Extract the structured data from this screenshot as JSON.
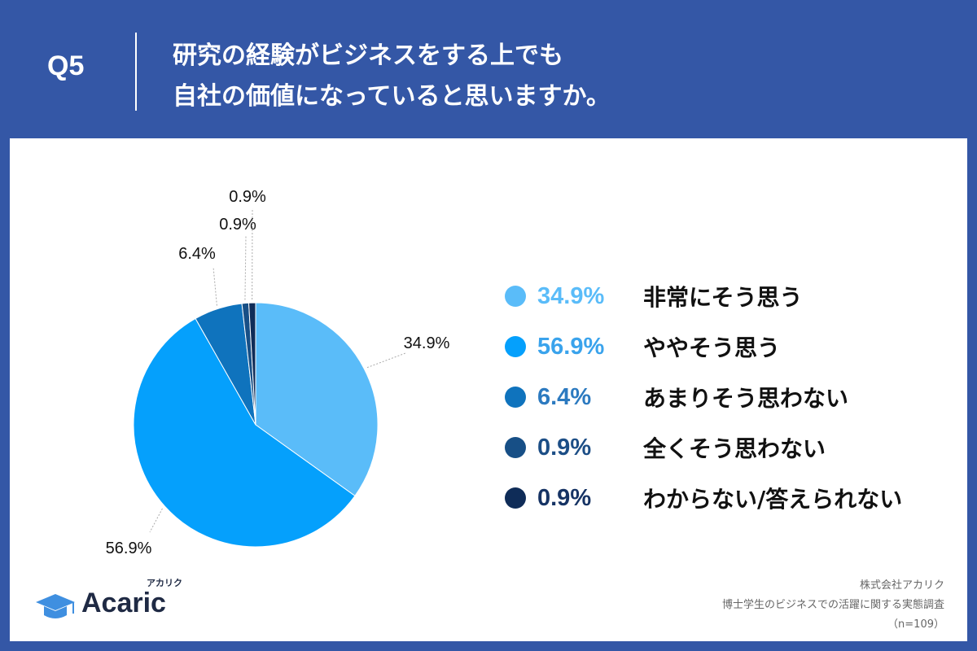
{
  "header": {
    "question_label": "Q5",
    "title_line1": "研究の経験がビジネスをする上でも",
    "title_line2": "自社の価値になっていると思いますか。"
  },
  "chart_data": {
    "type": "pie",
    "title": "",
    "slices": [
      {
        "label": "非常にそう思う",
        "value": 34.9,
        "display": "34.9%",
        "color": "#5abcf9",
        "text_color": "#5abcf9"
      },
      {
        "label": "ややそう思う",
        "value": 56.9,
        "display": "56.9%",
        "color": "#05a0fc",
        "text_color": "#3aa3ec"
      },
      {
        "label": "あまりそう思わない",
        "value": 6.4,
        "display": "6.4%",
        "color": "#0f73bd",
        "text_color": "#2c7ac0"
      },
      {
        "label": "全くそう思わない",
        "value": 0.9,
        "display": "0.9%",
        "color": "#174f86",
        "text_color": "#1c4e86"
      },
      {
        "label": "わからない/答えられない",
        "value": 0.9,
        "display": "0.9%",
        "color": "#0f2c58",
        "text_color": "#163364"
      }
    ],
    "legend_position": "right"
  },
  "logo": {
    "word": "Acaric",
    "kana": "アカリク",
    "color": "#1f2a44",
    "icon_color": "#3f8fe0"
  },
  "source": {
    "company": "株式会社アカリク",
    "survey": "博士学生のビジネスでの活躍に関する実態調査",
    "sample": "（n=109）"
  },
  "colors": {
    "frame_background": "#3457a6",
    "panel_background": "#ffffff"
  }
}
